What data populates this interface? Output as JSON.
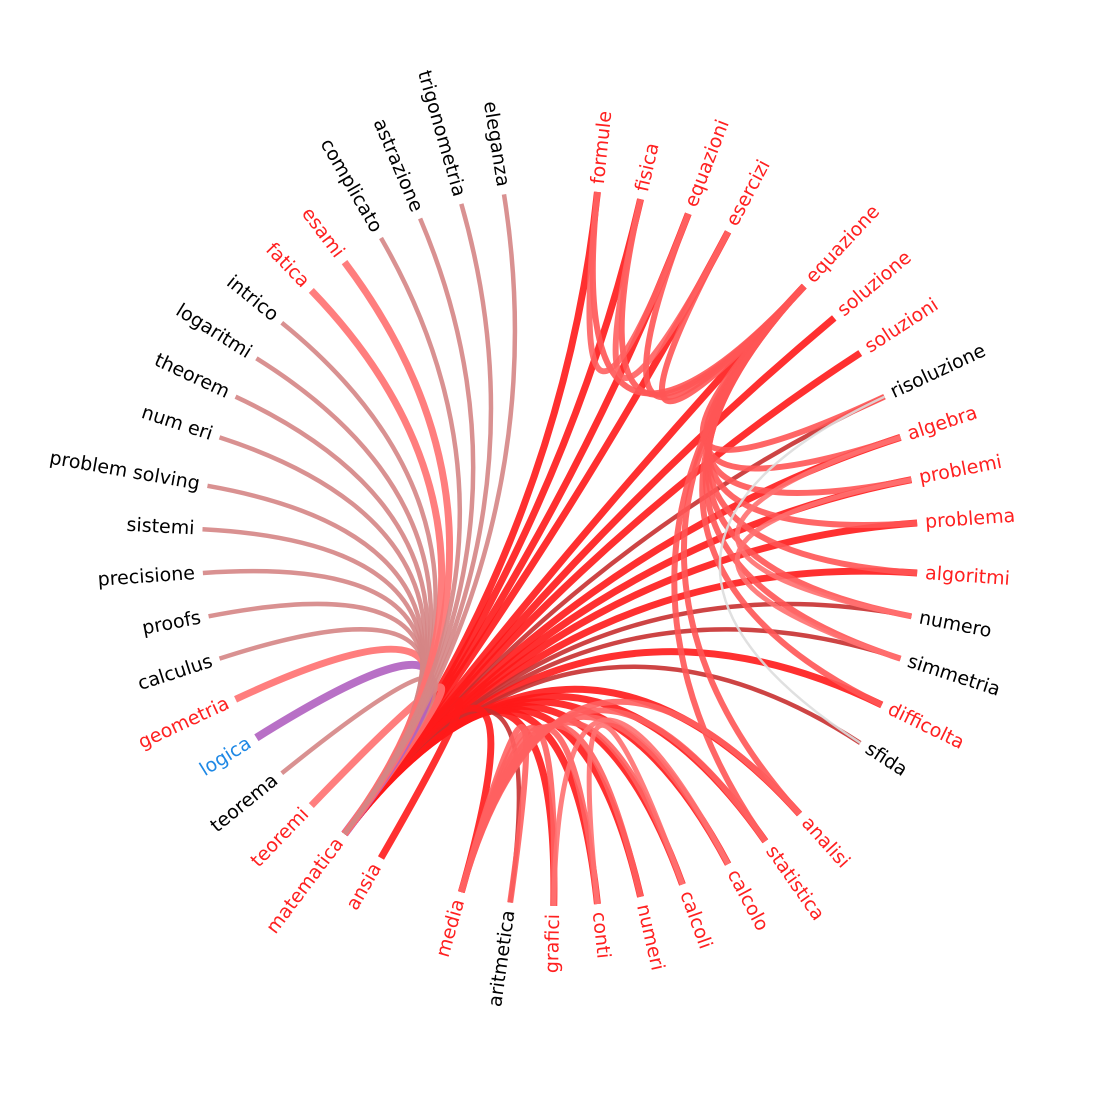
{
  "nodes": [
    {
      "label": "formule",
      "color": "#ff2020"
    },
    {
      "label": "fisica",
      "color": "#ff2020"
    },
    {
      "label": "equazioni",
      "color": "#ff2020"
    },
    {
      "label": "esercizi",
      "color": "#ff2020"
    },
    {
      "label": "equazione",
      "color": "#ff2020"
    },
    {
      "label": "soluzione",
      "color": "#ff2020"
    },
    {
      "label": "soluzioni",
      "color": "#ff2020"
    },
    {
      "label": "risoluzione",
      "color": "#000000"
    },
    {
      "label": "algebra",
      "color": "#ff2020"
    },
    {
      "label": "problemi",
      "color": "#ff2020"
    },
    {
      "label": "problema",
      "color": "#ff2020"
    },
    {
      "label": "algoritmi",
      "color": "#ff2020"
    },
    {
      "label": "numero",
      "color": "#000000"
    },
    {
      "label": "simmetria",
      "color": "#000000"
    },
    {
      "label": "difficolta",
      "color": "#ff2020"
    },
    {
      "label": "sfida",
      "color": "#000000"
    },
    {
      "label": "analisi",
      "color": "#ff2020"
    },
    {
      "label": "statistica",
      "color": "#ff2020"
    },
    {
      "label": "calcolo",
      "color": "#ff2020"
    },
    {
      "label": "calcoli",
      "color": "#ff2020"
    },
    {
      "label": "numeri",
      "color": "#ff2020"
    },
    {
      "label": "conti",
      "color": "#ff2020"
    },
    {
      "label": "grafici",
      "color": "#ff2020"
    },
    {
      "label": "aritmetica",
      "color": "#000000"
    },
    {
      "label": "media",
      "color": "#ff2020"
    },
    {
      "label": "ansia",
      "color": "#ff2020"
    },
    {
      "label": "matematica",
      "color": "#ff2020"
    },
    {
      "label": "teoremi",
      "color": "#ff2020"
    },
    {
      "label": "teorema",
      "color": "#000000"
    },
    {
      "label": "logica",
      "color": "#1e88e5"
    },
    {
      "label": "geometria",
      "color": "#ff2020"
    },
    {
      "label": "calculus",
      "color": "#000000"
    },
    {
      "label": "proofs",
      "color": "#000000"
    },
    {
      "label": "precisione",
      "color": "#000000"
    },
    {
      "label": "sistemi",
      "color": "#000000"
    },
    {
      "label": "problem solving",
      "color": "#000000"
    },
    {
      "label": "num eri",
      "color": "#000000"
    },
    {
      "label": "theorem",
      "color": "#000000"
    },
    {
      "label": "logaritmi",
      "color": "#000000"
    },
    {
      "label": "intrico",
      "color": "#000000"
    },
    {
      "label": "fatica",
      "color": "#ff2020"
    },
    {
      "label": "esami",
      "color": "#ff2020"
    },
    {
      "label": "complicato",
      "color": "#000000"
    },
    {
      "label": "astrazione",
      "color": "#000000"
    },
    {
      "label": "trigonometria",
      "color": "#000000"
    },
    {
      "label": "eleganza",
      "color": "#000000"
    }
  ]
}
